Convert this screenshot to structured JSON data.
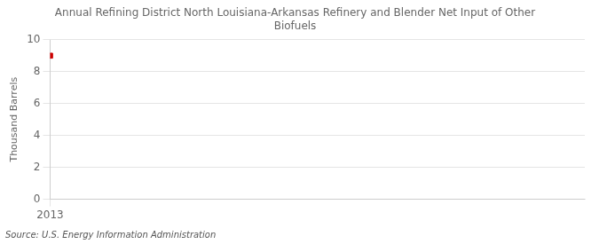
{
  "chart_data": {
    "type": "scatter",
    "title": "Annual Refining District North Louisiana-Arkansas Refinery and Blender Net Input of Other\nBiofuels",
    "ylabel": "Thousand Barrels",
    "source": "Source: U.S. Energy Information Administration",
    "x": [
      2013
    ],
    "values": [
      9
    ],
    "color": "#cc0000",
    "marker": "square",
    "xlim": [
      2013,
      2022
    ],
    "xticks": [
      2013
    ],
    "ylim": [
      0,
      10
    ],
    "yticks": [
      0,
      2,
      4,
      6,
      8,
      10
    ],
    "grid": true
  }
}
